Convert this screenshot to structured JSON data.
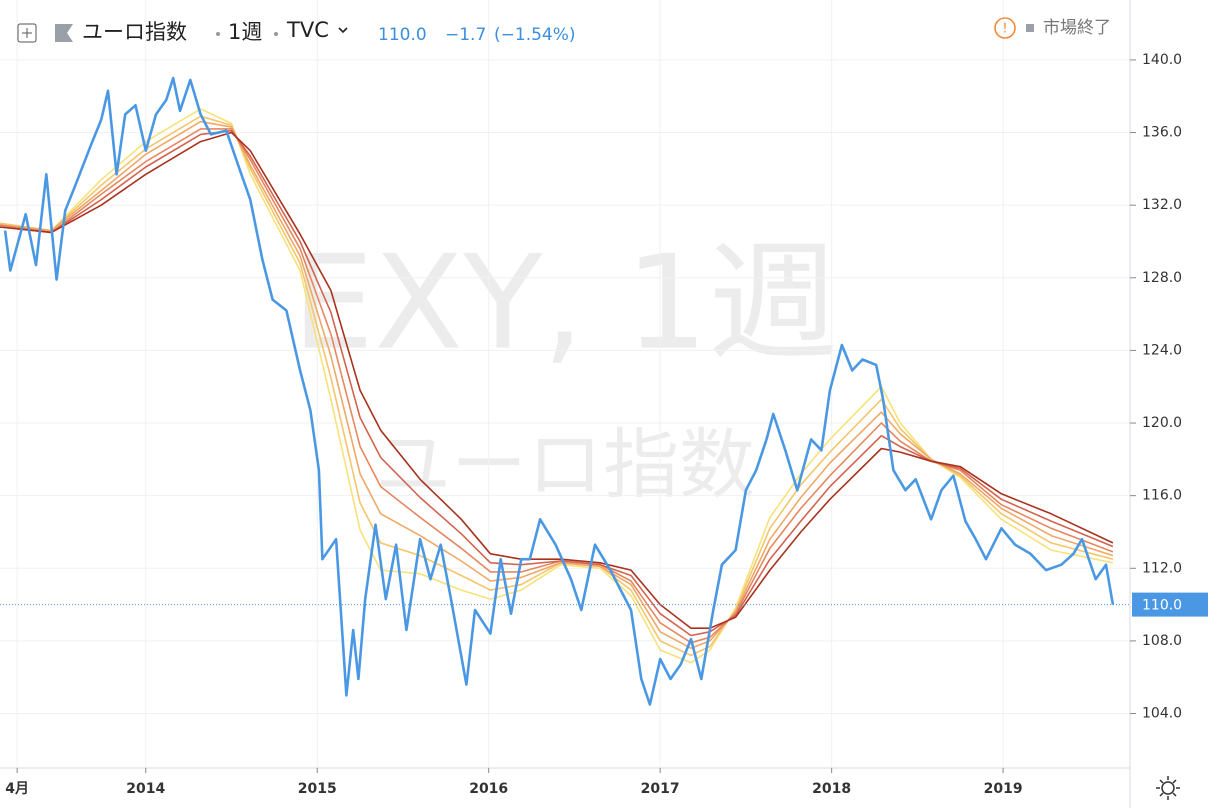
{
  "header": {
    "symbol": "ユーロ指数",
    "interval": "1週",
    "exchange": "TVC",
    "last": "110.0",
    "change": "−1.7",
    "change_pct": "(−1.54%)",
    "status": "市場終了"
  },
  "watermark": {
    "line1": "EXY, 1週",
    "line2": "ユーロ指数"
  },
  "chart_data": {
    "type": "line",
    "xlim": [
      2013.15,
      2019.74
    ],
    "ylim": [
      101,
      143.3
    ],
    "xticks": [
      {
        "value": 2013.25,
        "label": "4月"
      },
      2014,
      2015,
      2016,
      2017,
      2018,
      2019
    ],
    "yticks": [
      {
        "value": 104,
        "label": "104.0"
      },
      {
        "value": 108,
        "label": "108.0"
      },
      {
        "value": 112,
        "label": "112.0"
      },
      {
        "value": 116,
        "label": "116.0"
      },
      {
        "value": 120,
        "label": "120.0"
      },
      {
        "value": 124,
        "label": "124.0"
      },
      {
        "value": 128,
        "label": "128.0"
      },
      {
        "value": 132,
        "label": "132.0"
      },
      {
        "value": 136,
        "label": "136.0"
      },
      {
        "value": 140,
        "label": "140.0"
      }
    ],
    "grid": true,
    "x": [
      2013.15,
      2013.45,
      2013.74,
      2014.0,
      2014.32,
      2014.5,
      2014.61,
      2014.9,
      2015.08,
      2015.25,
      2015.37,
      2015.6,
      2015.84,
      2016.01,
      2016.19,
      2016.42,
      2016.65,
      2016.83,
      2017.0,
      2017.18,
      2017.29,
      2017.44,
      2017.64,
      2017.82,
      2017.99,
      2018.29,
      2018.4,
      2018.58,
      2018.75,
      2018.99,
      2019.28,
      2019.64
    ],
    "series": [
      {
        "color": "#f7e27a",
        "values": [
          131.0,
          130.6,
          133.4,
          135.5,
          137.3,
          136.5,
          133.7,
          128.4,
          121.3,
          114.1,
          111.9,
          111.7,
          110.8,
          110.3,
          110.8,
          112.2,
          112.0,
          110.5,
          107.5,
          106.8,
          107.5,
          109.8,
          114.8,
          117.2,
          119.1,
          122.0,
          120.0,
          118.0,
          117.0,
          114.7,
          113.0,
          112.3
        ]
      },
      {
        "color": "#f5c56b",
        "values": [
          131.0,
          130.6,
          133.1,
          135.1,
          136.9,
          136.4,
          134.0,
          128.8,
          122.5,
          115.6,
          113.4,
          112.7,
          111.6,
          110.8,
          111.1,
          112.3,
          112.1,
          110.8,
          108.0,
          107.2,
          107.7,
          109.7,
          114.2,
          116.6,
          118.4,
          121.3,
          119.7,
          118.0,
          117.1,
          115.0,
          113.4,
          112.5
        ]
      },
      {
        "color": "#f0a866",
        "values": [
          130.9,
          130.6,
          132.8,
          134.8,
          136.6,
          136.3,
          134.2,
          129.2,
          123.7,
          117.2,
          115.0,
          113.8,
          112.4,
          111.3,
          111.5,
          112.3,
          112.1,
          111.1,
          108.5,
          107.6,
          108.0,
          109.6,
          113.6,
          115.9,
          117.8,
          120.6,
          119.4,
          118.0,
          117.2,
          115.3,
          113.8,
          112.7
        ]
      },
      {
        "color": "#e6875f",
        "values": [
          130.9,
          130.5,
          132.6,
          134.4,
          136.2,
          136.2,
          134.5,
          129.6,
          124.9,
          118.7,
          116.5,
          114.8,
          113.1,
          111.8,
          111.8,
          112.4,
          112.2,
          111.3,
          109.0,
          107.9,
          108.2,
          109.5,
          113.1,
          115.3,
          117.1,
          120.0,
          119.0,
          117.9,
          117.4,
          115.5,
          114.2,
          112.9
        ]
      },
      {
        "color": "#d4634f",
        "values": [
          130.8,
          130.5,
          132.3,
          134.1,
          135.9,
          136.1,
          134.7,
          130.0,
          126.1,
          120.3,
          118.1,
          115.9,
          113.9,
          112.3,
          112.2,
          112.4,
          112.2,
          111.6,
          109.5,
          108.3,
          108.5,
          109.4,
          112.5,
          114.6,
          116.5,
          119.3,
          118.7,
          117.9,
          117.5,
          115.8,
          114.6,
          113.2
        ]
      },
      {
        "color": "#a8321e",
        "values": [
          130.8,
          130.5,
          132.0,
          133.7,
          135.5,
          136.0,
          135.0,
          130.4,
          127.3,
          121.8,
          119.6,
          116.9,
          114.7,
          112.8,
          112.5,
          112.5,
          112.3,
          111.9,
          110.0,
          108.7,
          108.7,
          109.3,
          111.9,
          114.0,
          115.8,
          118.6,
          118.4,
          117.9,
          117.6,
          116.1,
          115.0,
          113.4
        ]
      },
      {
        "color": "#4a98e4",
        "x": [
          2013.18,
          2013.21,
          2013.3,
          2013.36,
          2013.42,
          2013.48,
          2013.53,
          2013.59,
          2013.68,
          2013.74,
          2013.78,
          2013.83,
          2013.88,
          2013.94,
          2014.0,
          2014.06,
          2014.12,
          2014.16,
          2014.2,
          2014.26,
          2014.32,
          2014.38,
          2014.47,
          2014.55,
          2014.61,
          2014.68,
          2014.74,
          2014.82,
          2014.9,
          2014.96,
          2015.01,
          2015.03,
          2015.11,
          2015.17,
          2015.21,
          2015.24,
          2015.28,
          2015.34,
          2015.4,
          2015.46,
          2015.52,
          2015.6,
          2015.66,
          2015.72,
          2015.78,
          2015.87,
          2015.92,
          2016.01,
          2016.07,
          2016.13,
          2016.19,
          2016.24,
          2016.3,
          2016.39,
          2016.48,
          2016.54,
          2016.62,
          2016.71,
          2016.77,
          2016.83,
          2016.89,
          2016.94,
          2017.0,
          2017.06,
          2017.12,
          2017.18,
          2017.24,
          2017.31,
          2017.36,
          2017.44,
          2017.5,
          2017.56,
          2017.62,
          2017.66,
          2017.73,
          2017.8,
          2017.88,
          2017.94,
          2017.99,
          2018.06,
          2018.12,
          2018.18,
          2018.26,
          2018.3,
          2018.36,
          2018.43,
          2018.49,
          2018.58,
          2018.64,
          2018.71,
          2018.78,
          2018.84,
          2018.9,
          2018.99,
          2019.07,
          2019.16,
          2019.25,
          2019.34,
          2019.41,
          2019.46,
          2019.54,
          2019.6,
          2019.64
        ],
        "values": [
          130.6,
          128.4,
          131.5,
          128.7,
          133.7,
          127.9,
          131.7,
          133.1,
          135.3,
          136.7,
          138.3,
          133.7,
          137.0,
          137.5,
          135.0,
          137.0,
          137.8,
          139.0,
          137.2,
          138.9,
          137.0,
          135.9,
          136.1,
          133.9,
          132.3,
          129.0,
          126.8,
          126.2,
          122.9,
          120.7,
          117.4,
          112.5,
          113.6,
          105.0,
          108.6,
          105.9,
          110.3,
          114.4,
          110.3,
          113.3,
          108.6,
          113.6,
          111.4,
          113.3,
          110.3,
          105.6,
          109.7,
          108.4,
          112.5,
          109.5,
          112.5,
          112.5,
          114.7,
          113.3,
          111.4,
          109.7,
          113.3,
          111.9,
          110.8,
          109.7,
          105.9,
          104.5,
          107.0,
          105.9,
          106.7,
          108.1,
          105.9,
          109.7,
          112.2,
          113.0,
          116.3,
          117.4,
          119.1,
          120.5,
          118.5,
          116.3,
          119.1,
          118.5,
          121.8,
          124.3,
          122.9,
          123.5,
          123.2,
          121.3,
          117.4,
          116.3,
          116.9,
          114.7,
          116.3,
          117.1,
          114.6,
          113.6,
          112.5,
          114.2,
          113.3,
          112.8,
          111.9,
          112.2,
          112.8,
          113.6,
          111.4,
          112.2,
          110.0
        ]
      }
    ]
  }
}
